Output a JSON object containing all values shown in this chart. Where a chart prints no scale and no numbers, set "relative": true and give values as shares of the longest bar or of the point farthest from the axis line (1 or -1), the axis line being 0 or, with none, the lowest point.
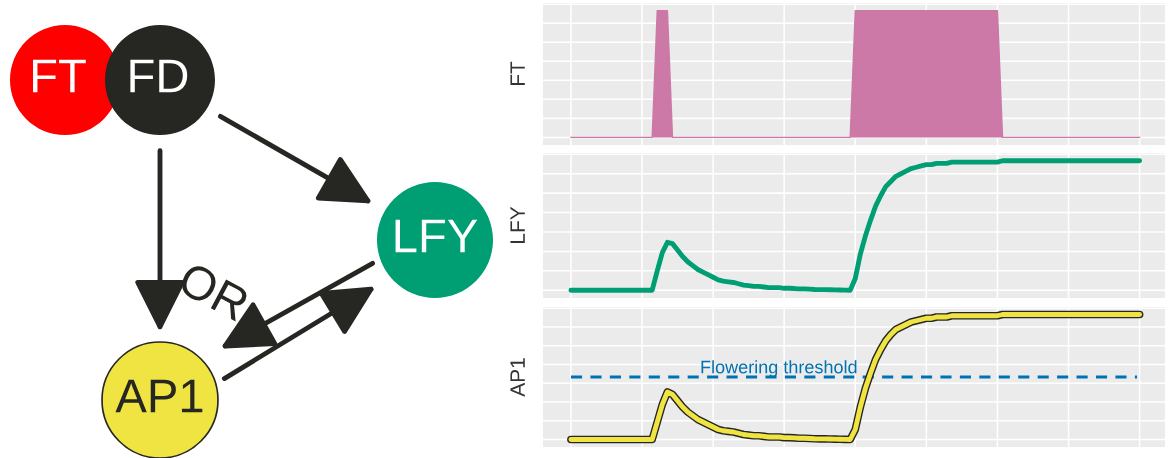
{
  "chart_data": [
    {
      "type": "other",
      "annotations": [
        "FT",
        "FD",
        "LFY",
        "AP1",
        "OR"
      ],
      "colors": [
        "#ff0000",
        "#262622",
        "#009e73",
        "#f0e442"
      ]
    },
    {
      "type": "area",
      "ylabel": "FT",
      "relative": true,
      "grid": true,
      "tick_labels": false,
      "categories": [
        null,
        null,
        null,
        null,
        null,
        null,
        null,
        null,
        null,
        null,
        null,
        null,
        null,
        null,
        null,
        null,
        null,
        null,
        null,
        null,
        null,
        null,
        null,
        null,
        null,
        null,
        null,
        null,
        null,
        null,
        null,
        null,
        null,
        null,
        null,
        null,
        null,
        null,
        null,
        null,
        null,
        null,
        null,
        null,
        null,
        null,
        null,
        null,
        null,
        null,
        null,
        null,
        null,
        null,
        null,
        null,
        null,
        null,
        null,
        null,
        null,
        null,
        null,
        null,
        null,
        null,
        null,
        null,
        null,
        null,
        null,
        null,
        null,
        null,
        null,
        null,
        null,
        null,
        null,
        null,
        null,
        null,
        null,
        null,
        null,
        null,
        null,
        null,
        null,
        null,
        null,
        null,
        null,
        null,
        null,
        null,
        null,
        null,
        null,
        null,
        null,
        null,
        null,
        null,
        null,
        null,
        null,
        null,
        null,
        null,
        null,
        null,
        null
      ],
      "series": [
        {
          "color": "#cc79a7",
          "values": [
            0,
            0,
            0,
            0,
            0,
            0,
            0,
            0,
            0,
            0,
            0,
            0,
            0,
            0,
            0,
            0,
            0,
            1,
            1,
            1,
            0,
            0,
            0,
            0,
            0,
            0,
            0,
            0,
            0,
            0,
            0,
            0,
            0,
            0,
            0,
            0,
            0,
            0,
            0,
            0,
            0,
            0,
            0,
            0,
            0,
            0,
            0,
            0,
            0,
            0,
            0,
            0,
            0,
            0,
            0,
            0,
            1,
            1,
            1,
            1,
            1,
            1,
            1,
            1,
            1,
            1,
            1,
            1,
            1,
            1,
            1,
            1,
            1,
            1,
            1,
            1,
            1,
            1,
            1,
            1,
            1,
            1,
            1,
            1,
            1,
            0,
            0,
            0,
            0,
            0,
            0,
            0,
            0,
            0,
            0,
            0,
            0,
            0,
            0,
            0,
            0,
            0,
            0,
            0,
            0,
            0,
            0,
            0,
            0,
            0,
            0,
            0,
            0
          ]
        }
      ]
    },
    {
      "type": "line",
      "ylabel": "LFY",
      "relative": true,
      "grid": true,
      "tick_labels": false,
      "categories": [
        null,
        null,
        null,
        null,
        null,
        null,
        null,
        null,
        null,
        null,
        null,
        null,
        null,
        null,
        null,
        null,
        null,
        null,
        null,
        null,
        null,
        null,
        null,
        null,
        null,
        null,
        null,
        null,
        null,
        null,
        null,
        null,
        null,
        null,
        null,
        null,
        null,
        null,
        null,
        null,
        null,
        null,
        null,
        null,
        null,
        null,
        null,
        null,
        null,
        null,
        null,
        null,
        null,
        null,
        null,
        null,
        null,
        null,
        null,
        null,
        null,
        null,
        null,
        null,
        null,
        null,
        null,
        null,
        null,
        null,
        null,
        null,
        null,
        null,
        null,
        null,
        null,
        null,
        null,
        null,
        null,
        null,
        null,
        null,
        null,
        null,
        null,
        null,
        null,
        null,
        null,
        null,
        null,
        null,
        null,
        null,
        null,
        null,
        null,
        null,
        null,
        null,
        null,
        null,
        null,
        null,
        null,
        null,
        null,
        null,
        null,
        null,
        null
      ],
      "series": [
        {
          "color": "#009e73",
          "values": [
            0,
            0,
            0,
            0,
            0,
            0,
            0,
            0,
            0,
            0,
            0,
            0,
            0,
            0,
            0,
            0,
            0,
            0.15,
            0.29,
            0.37,
            0.36,
            0.31,
            0.26,
            0.22,
            0.19,
            0.16,
            0.14,
            0.12,
            0.1,
            0.08,
            0.07,
            0.065,
            0.06,
            0.05,
            0.04,
            0.035,
            0.03,
            0.03,
            0.025,
            0.02,
            0.02,
            0.02,
            0.015,
            0.015,
            0.013,
            0.01,
            0.01,
            0.008,
            0.006,
            0.005,
            0.005,
            0.004,
            0.003,
            0.002,
            0.001,
            0,
            0.09,
            0.28,
            0.42,
            0.54,
            0.65,
            0.73,
            0.8,
            0.84,
            0.88,
            0.9,
            0.92,
            0.94,
            0.95,
            0.96,
            0.97,
            0.97,
            0.98,
            0.98,
            0.98,
            0.99,
            0.99,
            0.99,
            0.99,
            0.99,
            0.99,
            0.99,
            0.99,
            0.99,
            0.99,
            1,
            1,
            1,
            1,
            1,
            1,
            1,
            1,
            1,
            1,
            1,
            1,
            1,
            1,
            1,
            1,
            1,
            1,
            1,
            1,
            1,
            1,
            1,
            1,
            1,
            1,
            1,
            1
          ]
        }
      ]
    },
    {
      "type": "line",
      "ylabel": "AP1",
      "relative": true,
      "grid": true,
      "tick_labels": false,
      "categories": [
        null,
        null,
        null,
        null,
        null,
        null,
        null,
        null,
        null,
        null,
        null,
        null,
        null,
        null,
        null,
        null,
        null,
        null,
        null,
        null,
        null,
        null,
        null,
        null,
        null,
        null,
        null,
        null,
        null,
        null,
        null,
        null,
        null,
        null,
        null,
        null,
        null,
        null,
        null,
        null,
        null,
        null,
        null,
        null,
        null,
        null,
        null,
        null,
        null,
        null,
        null,
        null,
        null,
        null,
        null,
        null,
        null,
        null,
        null,
        null,
        null,
        null,
        null,
        null,
        null,
        null,
        null,
        null,
        null,
        null,
        null,
        null,
        null,
        null,
        null,
        null,
        null,
        null,
        null,
        null,
        null,
        null,
        null,
        null,
        null,
        null,
        null,
        null,
        null,
        null,
        null,
        null,
        null,
        null,
        null,
        null,
        null,
        null,
        null,
        null,
        null,
        null,
        null,
        null,
        null,
        null,
        null,
        null,
        null,
        null,
        null,
        null,
        null
      ],
      "series": [
        {
          "color": "#f0e442",
          "values": [
            0,
            0,
            0,
            0,
            0,
            0,
            0,
            0,
            0,
            0,
            0,
            0,
            0,
            0,
            0,
            0,
            0,
            0.14,
            0.28,
            0.38,
            0.36,
            0.31,
            0.26,
            0.22,
            0.19,
            0.16,
            0.14,
            0.12,
            0.1,
            0.08,
            0.07,
            0.065,
            0.06,
            0.05,
            0.04,
            0.035,
            0.03,
            0.03,
            0.025,
            0.02,
            0.02,
            0.02,
            0.015,
            0.015,
            0.013,
            0.01,
            0.01,
            0.008,
            0.006,
            0.005,
            0.005,
            0.004,
            0.003,
            0.002,
            0.001,
            0,
            0.08,
            0.26,
            0.41,
            0.53,
            0.64,
            0.72,
            0.79,
            0.84,
            0.88,
            0.9,
            0.92,
            0.94,
            0.95,
            0.96,
            0.97,
            0.97,
            0.98,
            0.98,
            0.98,
            0.99,
            0.99,
            0.99,
            0.99,
            0.99,
            0.99,
            0.99,
            0.99,
            0.99,
            0.99,
            1,
            1,
            1,
            1,
            1,
            1,
            1,
            1,
            1,
            1,
            1,
            1,
            1,
            1,
            1,
            1,
            1,
            1,
            1,
            1,
            1,
            1,
            1,
            1,
            1,
            1,
            1,
            1
          ]
        }
      ],
      "ref_lines": [
        {
          "axis": "y",
          "value": 0.5,
          "label": "Flowering threshold",
          "color": "#0072b2",
          "line_style": "dashed"
        }
      ]
    }
  ]
}
